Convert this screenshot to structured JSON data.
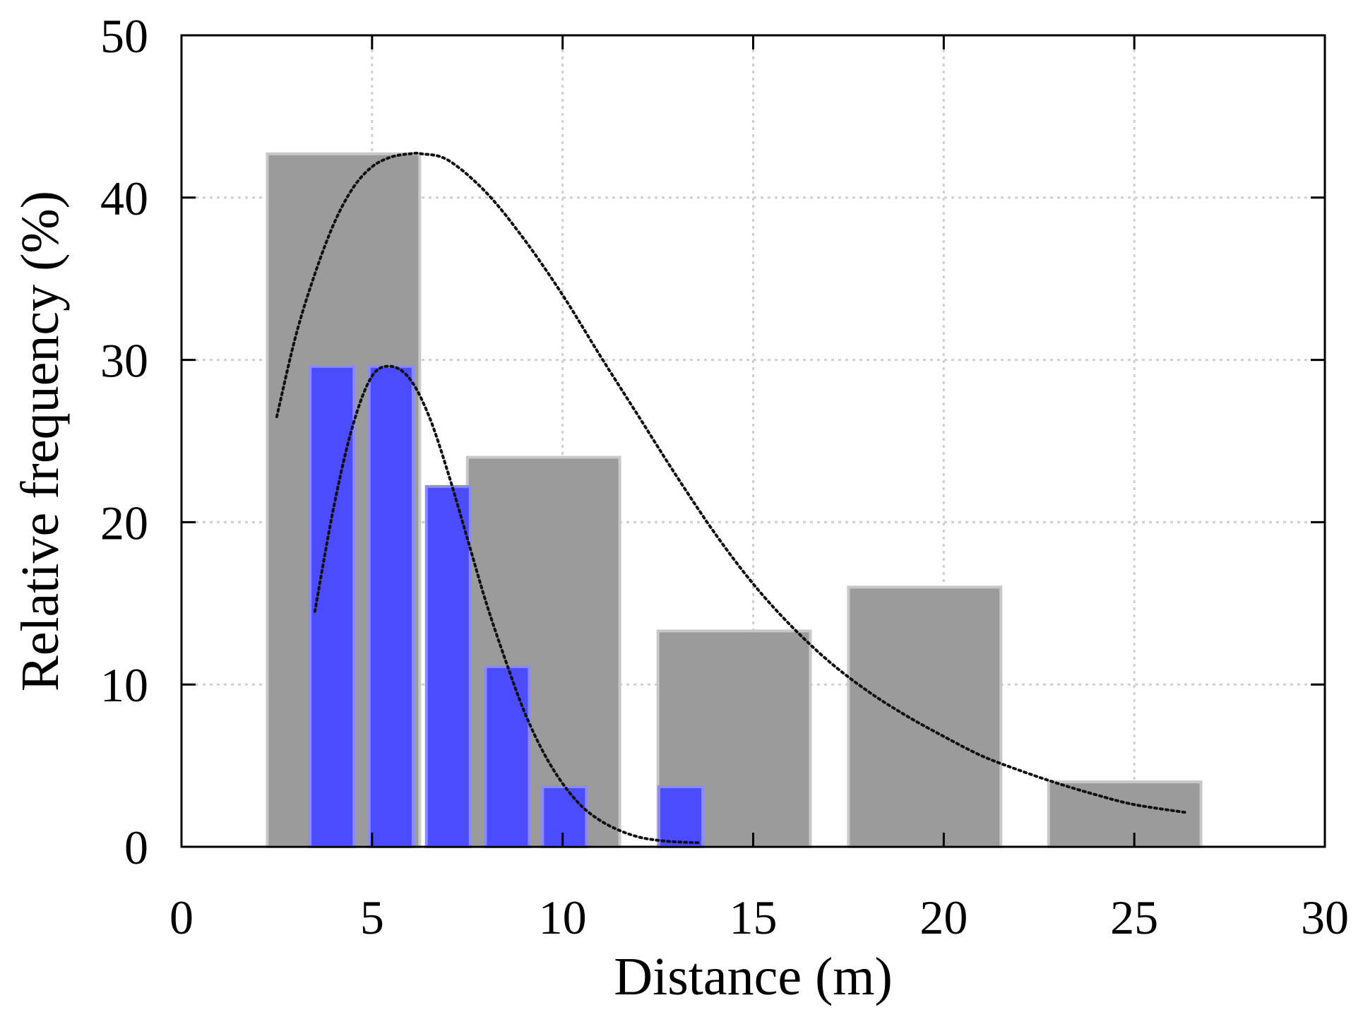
{
  "chart_data": {
    "type": "bar",
    "title": "",
    "xlabel": "Distance (m)",
    "ylabel": "Relative frequency (%)",
    "xlim": [
      0,
      30
    ],
    "ylim": [
      0,
      50
    ],
    "xticks": [
      "0",
      "5",
      "10",
      "15",
      "20",
      "25",
      "30"
    ],
    "yticks": [
      "0",
      "10",
      "20",
      "30",
      "40",
      "50"
    ],
    "grid": true,
    "legend": "none",
    "colors": {
      "gray_fill": "#9b9b9b",
      "gray_edge": "#c8c8c8",
      "blue_fill": "#4b4bff",
      "blue_edge": "#8a8aff",
      "curve": "#111111",
      "grid": "#cfcfcf"
    },
    "series": [
      {
        "name": "gray bars",
        "x": [
          4.25,
          9.5,
          14.5,
          19.5,
          24.75
        ],
        "width": [
          4.0,
          4.0,
          4.0,
          4.0,
          4.0
        ],
        "values": [
          42.7,
          24.0,
          13.3,
          16.0,
          4.0
        ]
      },
      {
        "name": "blue bars",
        "x": [
          3.95,
          5.5,
          7.0,
          8.55,
          10.05,
          13.1
        ],
        "width": [
          1.15,
          1.15,
          1.15,
          1.15,
          1.15,
          1.15
        ],
        "values": [
          29.6,
          29.6,
          22.2,
          11.1,
          3.7,
          3.7
        ]
      }
    ],
    "curves": [
      {
        "name": "gray fit",
        "x": [
          2.5,
          3.0,
          3.5,
          4.0,
          4.5,
          5.0,
          5.5,
          6.0,
          6.3,
          7.0,
          8.0,
          9.0,
          10.0,
          11.0,
          12.0,
          13.0,
          14.0,
          15.0,
          16.0,
          17.0,
          18.0,
          19.0,
          20.0,
          21.0,
          22.0,
          23.0,
          24.0,
          25.0,
          26.4
        ],
        "y": [
          26.5,
          31.5,
          35.3,
          38.4,
          40.6,
          41.9,
          42.5,
          42.7,
          42.7,
          42.3,
          40.3,
          37.4,
          34.0,
          30.2,
          26.5,
          22.8,
          19.3,
          16.2,
          13.6,
          11.4,
          9.6,
          8.1,
          6.8,
          5.6,
          4.7,
          3.9,
          3.2,
          2.6,
          2.1
        ]
      },
      {
        "name": "blue fit",
        "x": [
          3.5,
          4.0,
          4.5,
          5.0,
          5.5,
          6.0,
          6.5,
          7.0,
          7.5,
          8.0,
          8.5,
          9.0,
          9.5,
          10.0,
          10.5,
          11.0,
          11.5,
          12.0,
          12.5,
          13.0,
          13.6
        ],
        "y": [
          14.5,
          21.0,
          26.0,
          29.0,
          29.6,
          28.8,
          26.5,
          23.0,
          19.0,
          15.0,
          11.5,
          8.3,
          5.8,
          3.9,
          2.5,
          1.6,
          1.0,
          0.6,
          0.4,
          0.3,
          0.25
        ]
      }
    ]
  }
}
